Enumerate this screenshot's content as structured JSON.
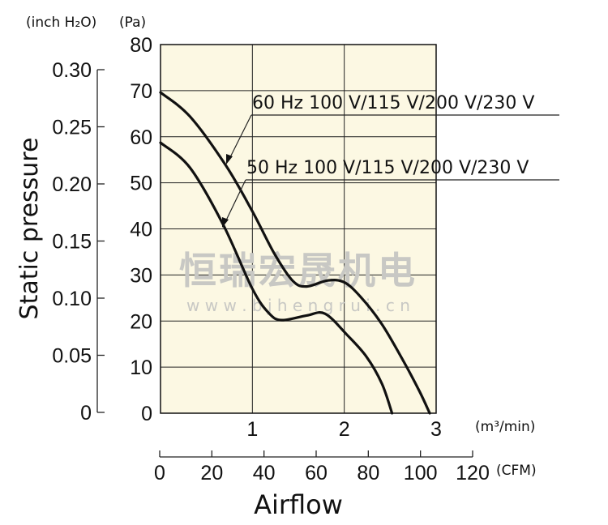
{
  "chart_data": {
    "type": "line",
    "ylabel": "Static pressure",
    "xlabel": "Airflow",
    "y_unit_left": "(inch H₂O)",
    "y_unit_right": "(Pa)",
    "x_unit_top": "(m³/min)",
    "x_unit_bottom": "(CFM)",
    "ylim_pa": [
      0,
      80
    ],
    "xlim_m3min": [
      0,
      3
    ],
    "ylim_inch": [
      0,
      0.3
    ],
    "xlim_cfm": [
      0,
      120
    ],
    "yticks_pa": [
      "0",
      "10",
      "20",
      "30",
      "40",
      "50",
      "60",
      "70",
      "80"
    ],
    "yticks_inch": [
      "0",
      "0.05",
      "0.10",
      "0.15",
      "0.20",
      "0.25",
      "0.30"
    ],
    "xticks_m3min": [
      "1",
      "2",
      "3"
    ],
    "xticks_cfm": [
      "0",
      "20",
      "40",
      "60",
      "80",
      "100",
      "120"
    ],
    "grid": true,
    "background": "#fcf8e3",
    "series": [
      {
        "name": "60 Hz 100 V/115 V/200 V/230 V",
        "x": [
          0,
          0.32,
          0.71,
          1.0,
          1.24,
          1.44,
          1.59,
          1.82,
          2.0,
          2.18,
          2.41,
          2.65,
          2.82,
          2.93
        ],
        "y": [
          69.6,
          64.4,
          53.8,
          43.8,
          34.6,
          28.7,
          27.5,
          28.8,
          28.4,
          25.2,
          19.3,
          11.1,
          4.7,
          0
        ]
      },
      {
        "name": "50 Hz 100 V/115 V/200 V/230 V",
        "x": [
          0,
          0.32,
          0.68,
          1.0,
          1.18,
          1.32,
          1.59,
          1.79,
          2.03,
          2.24,
          2.41,
          2.52
        ],
        "y": [
          58.7,
          53.3,
          41.0,
          27.0,
          21.7,
          20.2,
          21.2,
          21.6,
          17.0,
          12.3,
          6.4,
          0
        ]
      }
    ]
  },
  "watermark": {
    "cn": "恒瑞宏晟机电",
    "url": "w w w . b j h e n g r u i . c n"
  }
}
